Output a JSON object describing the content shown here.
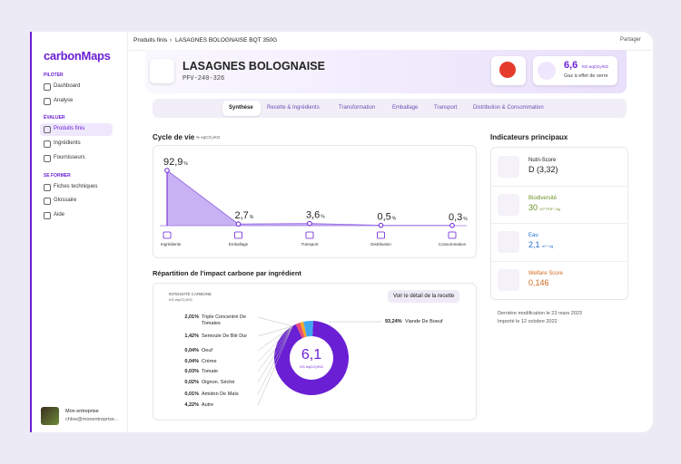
{
  "sidebar": {
    "logo": "carbonMaps",
    "sections": [
      {
        "title": "PILOTER",
        "items": [
          "Dashboard",
          "Analyse"
        ]
      },
      {
        "title": "ÉVALUER",
        "items": [
          "Produits finis",
          "Ingrédients",
          "Fournisseurs"
        ]
      },
      {
        "title": "SE FORMER",
        "items": [
          "Fiches techniques",
          "Glossaire",
          "Aide"
        ]
      }
    ],
    "user": {
      "company": "Mon entreprise",
      "email": "chloe@monentreprise..."
    }
  },
  "topbar": {
    "breadcrumb": [
      "Produits finis",
      "LASAGNES BOLOGNAISE BQT 350G"
    ],
    "share": "Partager"
  },
  "product": {
    "name": "LASAGNES BOLOGNAISE",
    "code": "PFV-240-326",
    "carbon": {
      "value": "6,6",
      "unit": "KG eqCO₂/KG",
      "label": "Gaz à effet de serre"
    }
  },
  "tabs": [
    "Synthèse",
    "Recette & Ingrédients",
    "Transformation",
    "Emballage",
    "Transport",
    "Distribution & Consommation"
  ],
  "lifecycle": {
    "title": "Cycle de vie",
    "unit": "% eqCO₂/KG",
    "value_unit": "%",
    "stages": [
      {
        "name": "Ingrédients",
        "value": 92.9,
        "value_label": "92,9"
      },
      {
        "name": "Emballage",
        "value": 2.7,
        "value_label": "2,7"
      },
      {
        "name": "Transport",
        "value": 3.6,
        "value_label": "3,6"
      },
      {
        "name": "Distribution",
        "value": 0.5,
        "value_label": "0,5"
      },
      {
        "name": "Consommation",
        "value": 0.3,
        "value_label": "0,3"
      }
    ]
  },
  "impact": {
    "title": "Répartition de l'impact carbone par ingrédient",
    "filter": "INTENSITÉ CARBONE",
    "filter_unit": "KG eqCO₂/KG",
    "button": "Voir le détail de la recette",
    "total": "6,1",
    "total_unit": "KG eqCO₂/KG",
    "ingredients": [
      {
        "name": "Viande De Boeuf",
        "value": 93.24,
        "value_label": "93,24%",
        "color": "#6a1fd4"
      },
      {
        "name": "Triple Concentré De Tomates",
        "value": 2.01,
        "value_label": "2,01%",
        "color": "#e94e77"
      },
      {
        "name": "Semoule De Blé Dur",
        "value": 1.42,
        "value_label": "1,42%",
        "color": "#f5a623"
      },
      {
        "name": "Oeuf",
        "value": 0.04,
        "value_label": "0,04%",
        "color": "#7ed321"
      },
      {
        "name": "Crème",
        "value": 0.04,
        "value_label": "0,04%",
        "color": "#4a90e2"
      },
      {
        "name": "Tomate",
        "value": 0.03,
        "value_label": "0,03%",
        "color": "#d0021b"
      },
      {
        "name": "Oignon. Séché",
        "value": 0.02,
        "value_label": "0,02%",
        "color": "#50e3c2"
      },
      {
        "name": "Amidon De Maïs",
        "value": 0.01,
        "value_label": "0,01%",
        "color": "#bd10e0"
      },
      {
        "name": "Autre",
        "value": 4.22,
        "value_label": "4,22%",
        "color": "#3fa7f0"
      }
    ]
  },
  "indicators": {
    "title": "Indicateurs principaux",
    "items": [
      {
        "name": "Nutri-Score",
        "value": "D (3,32)",
        "color": "#222222"
      },
      {
        "name": "Biodiversité",
        "value": "30",
        "unit": "10⁹ PDF / kg",
        "color": "#6b8e23"
      },
      {
        "name": "Eau",
        "value": "2,1",
        "unit": "m³ / kg",
        "color": "#1e6fd0"
      },
      {
        "name": "Welfare Score",
        "value": "0,146",
        "color": "#d2691e"
      }
    ]
  },
  "history": [
    "Dernière modification le 23 mars 2023",
    "Importé le 12 octobre 2022"
  ]
}
